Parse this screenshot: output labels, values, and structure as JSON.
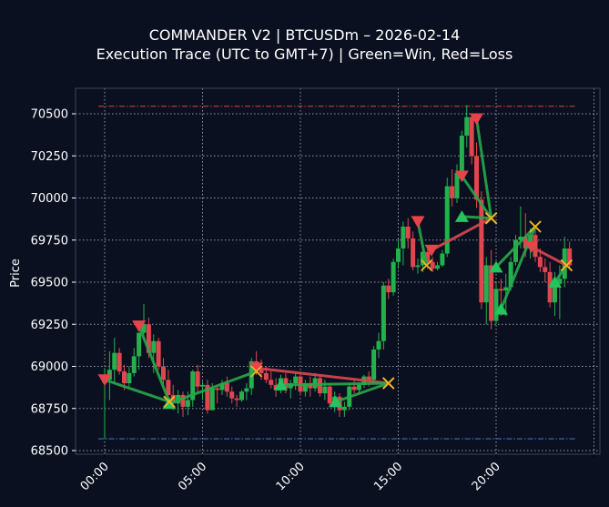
{
  "chart_data": {
    "type": "candlestick",
    "title": "COMMANDER V2 | BTCUSDm – 2026-02-14",
    "subtitle": "Execution Trace (UTC to GMT+7) | Green=Win, Red=Loss",
    "xlabel": "",
    "ylabel": "Price",
    "ylim": [
      68450,
      70560
    ],
    "xlim_hours": [
      -1.5,
      25.3
    ],
    "x_ticks": [
      "00:00",
      "05:00",
      "10:00",
      "15:00",
      "20:00"
    ],
    "y_ticks": [
      68500,
      68750,
      69000,
      69250,
      69500,
      69750,
      70000,
      70250,
      70500
    ],
    "grid": true,
    "colors": {
      "background": "#0b1020",
      "up": "#22b14c",
      "down": "#e0464e",
      "win": "#27a84a",
      "loss": "#d9484f",
      "exit": "#f0b323",
      "grid": "#c8c8c8",
      "frame": "#3a4556"
    },
    "reference_lines": [
      {
        "label": "upper",
        "price": 70545,
        "color": "#c9373c",
        "style": "dashdot"
      },
      {
        "label": "lower",
        "price": 68570,
        "color": "#2f6fd0",
        "style": "dashdot"
      }
    ],
    "candles_interval_min": 15,
    "candles": [
      [
        68900,
        68990,
        68570,
        68920
      ],
      [
        68920,
        69090,
        68800,
        68980
      ],
      [
        68980,
        69170,
        68900,
        69080
      ],
      [
        69080,
        69110,
        68950,
        68970
      ],
      [
        68970,
        69010,
        68860,
        68900
      ],
      [
        68900,
        69000,
        68880,
        68960
      ],
      [
        68960,
        69110,
        68940,
        69060
      ],
      [
        69060,
        69150,
        68980,
        69200
      ],
      [
        69200,
        69370,
        69150,
        69250
      ],
      [
        69250,
        69290,
        69050,
        69080
      ],
      [
        69080,
        69190,
        68960,
        69150
      ],
      [
        69150,
        69170,
        68980,
        69000
      ],
      [
        69000,
        69050,
        68880,
        68920
      ],
      [
        68920,
        68980,
        68780,
        68830
      ],
      [
        68830,
        68890,
        68740,
        68780
      ],
      [
        68780,
        68860,
        68720,
        68830
      ],
      [
        68830,
        68850,
        68700,
        68760
      ],
      [
        68760,
        68850,
        68710,
        68800
      ],
      [
        68800,
        68980,
        68760,
        68970
      ],
      [
        68970,
        69010,
        68850,
        68880
      ],
      [
        68880,
        68910,
        68800,
        68890
      ],
      [
        68890,
        68920,
        68720,
        68740
      ],
      [
        68740,
        68900,
        68740,
        68870
      ],
      [
        68870,
        68880,
        68780,
        68860
      ],
      [
        68860,
        68920,
        68830,
        68900
      ],
      [
        68900,
        68940,
        68820,
        68850
      ],
      [
        68850,
        68880,
        68780,
        68810
      ],
      [
        68810,
        68830,
        68760,
        68800
      ],
      [
        68800,
        68860,
        68790,
        68850
      ],
      [
        68850,
        68900,
        68800,
        68870
      ],
      [
        68870,
        69050,
        68830,
        69030
      ],
      [
        69030,
        69090,
        68950,
        68980
      ],
      [
        68980,
        69040,
        68920,
        68960
      ],
      [
        68960,
        69000,
        68900,
        68920
      ],
      [
        68920,
        68970,
        68870,
        68890
      ],
      [
        68890,
        68930,
        68820,
        68860
      ],
      [
        68860,
        68950,
        68840,
        68930
      ],
      [
        68930,
        68960,
        68840,
        68870
      ],
      [
        68870,
        68920,
        68810,
        68900
      ],
      [
        68900,
        68970,
        68860,
        68940
      ],
      [
        68940,
        68960,
        68830,
        68850
      ],
      [
        68850,
        68920,
        68820,
        68900
      ],
      [
        68900,
        68940,
        68820,
        68870
      ],
      [
        68870,
        68960,
        68850,
        68930
      ],
      [
        68930,
        68950,
        68820,
        68840
      ],
      [
        68840,
        68920,
        68800,
        68880
      ],
      [
        68880,
        68900,
        68760,
        68780
      ],
      [
        68780,
        68850,
        68730,
        68820
      ],
      [
        68820,
        68840,
        68700,
        68740
      ],
      [
        68740,
        68790,
        68700,
        68760
      ],
      [
        68760,
        68900,
        68740,
        68880
      ],
      [
        68880,
        68920,
        68840,
        68860
      ],
      [
        68860,
        68900,
        68830,
        68890
      ],
      [
        68890,
        68950,
        68870,
        68940
      ],
      [
        68940,
        68970,
        68880,
        68920
      ],
      [
        68920,
        69120,
        68900,
        69100
      ],
      [
        69100,
        69200,
        69050,
        69150
      ],
      [
        69150,
        69500,
        69100,
        69480
      ],
      [
        69480,
        69520,
        69400,
        69440
      ],
      [
        69440,
        69640,
        69420,
        69620
      ],
      [
        69620,
        69760,
        69580,
        69700
      ],
      [
        69700,
        69860,
        69600,
        69830
      ],
      [
        69830,
        69880,
        69700,
        69760
      ],
      [
        69760,
        69800,
        69570,
        69590
      ],
      [
        69590,
        69640,
        69550,
        69600
      ],
      [
        69600,
        69720,
        69560,
        69680
      ],
      [
        69680,
        69700,
        69580,
        69620
      ],
      [
        69620,
        69650,
        69560,
        69580
      ],
      [
        69580,
        69620,
        69570,
        69600
      ],
      [
        69600,
        69690,
        69590,
        69670
      ],
      [
        69670,
        70120,
        69650,
        70070
      ],
      [
        70070,
        70170,
        69950,
        70000
      ],
      [
        70000,
        70200,
        69970,
        70150
      ],
      [
        70150,
        70400,
        70100,
        70370
      ],
      [
        70370,
        70550,
        70300,
        70480
      ],
      [
        70480,
        70500,
        70200,
        70250
      ],
      [
        70250,
        70330,
        69940,
        69990
      ],
      [
        69990,
        70040,
        69340,
        69380
      ],
      [
        69380,
        69650,
        69250,
        69600
      ],
      [
        69600,
        69690,
        69220,
        69270
      ],
      [
        69270,
        69500,
        69250,
        69460
      ],
      [
        69460,
        69520,
        69300,
        69450
      ],
      [
        69450,
        69550,
        69300,
        69470
      ],
      [
        69470,
        69650,
        69450,
        69620
      ],
      [
        69620,
        69780,
        69600,
        69750
      ],
      [
        69750,
        69950,
        69700,
        69770
      ],
      [
        69770,
        69910,
        69650,
        69700
      ],
      [
        69700,
        69820,
        69640,
        69780
      ],
      [
        69780,
        69820,
        69620,
        69650
      ],
      [
        69650,
        69700,
        69560,
        69590
      ],
      [
        69590,
        69640,
        69500,
        69560
      ],
      [
        69560,
        69620,
        69350,
        69380
      ],
      [
        69380,
        69560,
        69300,
        69490
      ],
      [
        69490,
        69600,
        69280,
        69520
      ],
      [
        69520,
        69770,
        69470,
        69700
      ],
      [
        69700,
        69740,
        69580,
        69600
      ]
    ],
    "trades": [
      {
        "side": "sell",
        "entry_time": 0.0,
        "entry_price": 68920,
        "exit_time": 3.3,
        "exit_price": 68790,
        "result": "win"
      },
      {
        "side": "sell",
        "entry_time": 1.75,
        "entry_price": 69240,
        "exit_time": 3.3,
        "exit_price": 68790,
        "result": "win"
      },
      {
        "side": "buy",
        "entry_time": 3.3,
        "entry_price": 68780,
        "exit_time": 7.75,
        "exit_price": 68970,
        "result": "win"
      },
      {
        "side": "sell",
        "entry_time": 7.75,
        "entry_price": 68990,
        "exit_time": 14.5,
        "exit_price": 68900,
        "result": "loss"
      },
      {
        "side": "buy",
        "entry_time": 9.0,
        "entry_price": 68890,
        "exit_time": 14.5,
        "exit_price": 68900,
        "result": "win"
      },
      {
        "side": "buy",
        "entry_time": 11.8,
        "entry_price": 68790,
        "exit_time": 14.5,
        "exit_price": 68900,
        "result": "win"
      },
      {
        "side": "sell",
        "entry_time": 16.0,
        "entry_price": 69860,
        "exit_time": 16.45,
        "exit_price": 69600,
        "result": "win"
      },
      {
        "side": "sell",
        "entry_time": 16.7,
        "entry_price": 69690,
        "exit_time": 19.75,
        "exit_price": 69880,
        "result": "loss"
      },
      {
        "side": "sell",
        "entry_time": 18.25,
        "entry_price": 70130,
        "exit_time": 19.75,
        "exit_price": 69880,
        "result": "win"
      },
      {
        "side": "sell",
        "entry_time": 19.0,
        "entry_price": 70470,
        "exit_time": 19.75,
        "exit_price": 69880,
        "result": "win"
      },
      {
        "side": "buy",
        "entry_time": 18.25,
        "entry_price": 69890,
        "exit_time": 19.75,
        "exit_price": 69880,
        "result": "win"
      },
      {
        "side": "buy",
        "entry_time": 20.0,
        "entry_price": 69590,
        "exit_time": 22.0,
        "exit_price": 69830,
        "result": "win"
      },
      {
        "side": "buy",
        "entry_time": 20.25,
        "entry_price": 69340,
        "exit_time": 22.0,
        "exit_price": 69830,
        "result": "win"
      },
      {
        "side": "sell",
        "entry_time": 21.8,
        "entry_price": 69710,
        "exit_time": 23.6,
        "exit_price": 69600,
        "result": "loss"
      },
      {
        "side": "buy",
        "entry_time": 23.0,
        "entry_price": 69500,
        "exit_time": 23.6,
        "exit_price": 69600,
        "result": "win"
      }
    ]
  }
}
